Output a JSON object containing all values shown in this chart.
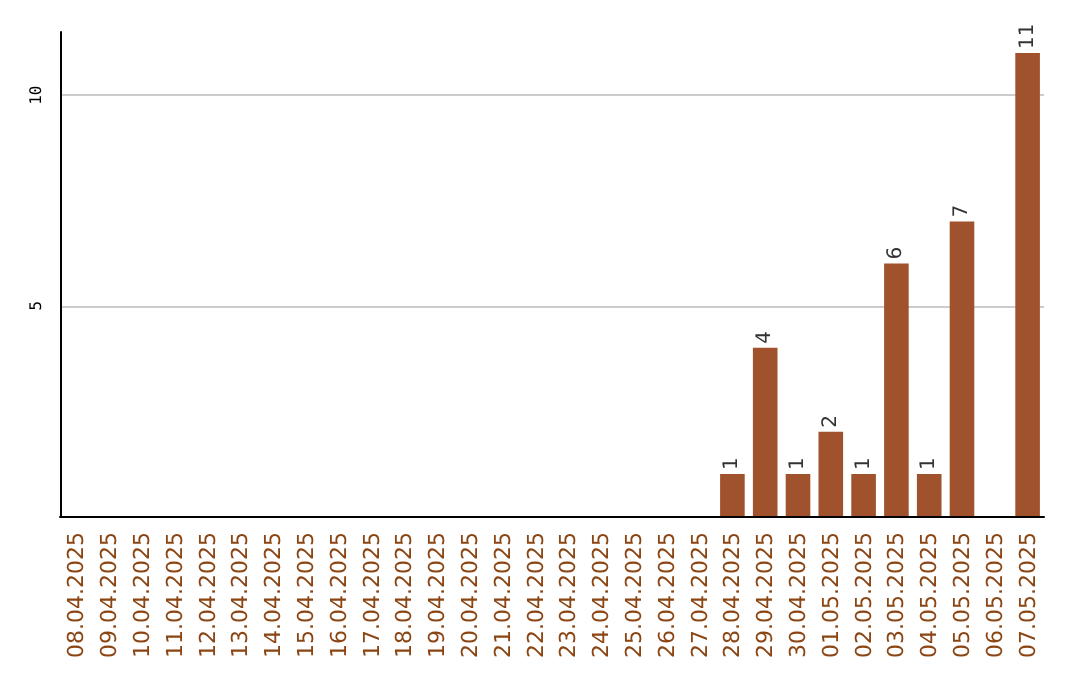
{
  "chart_data": {
    "type": "bar",
    "categories": [
      "08.04.2025",
      "09.04.2025",
      "10.04.2025",
      "11.04.2025",
      "12.04.2025",
      "13.04.2025",
      "14.04.2025",
      "15.04.2025",
      "16.04.2025",
      "17.04.2025",
      "18.04.2025",
      "19.04.2025",
      "20.04.2025",
      "21.04.2025",
      "22.04.2025",
      "23.04.2025",
      "24.04.2025",
      "25.04.2025",
      "26.04.2025",
      "27.04.2025",
      "28.04.2025",
      "29.04.2025",
      "30.04.2025",
      "01.05.2025",
      "02.05.2025",
      "03.05.2025",
      "04.05.2025",
      "05.05.2025",
      "06.05.2025",
      "07.05.2025"
    ],
    "values": [
      0,
      0,
      0,
      0,
      0,
      0,
      0,
      0,
      0,
      0,
      0,
      0,
      0,
      0,
      0,
      0,
      0,
      0,
      0,
      0,
      1,
      4,
      1,
      2,
      1,
      6,
      1,
      7,
      0,
      11
    ],
    "value_labels": [
      null,
      null,
      null,
      null,
      null,
      null,
      null,
      null,
      null,
      null,
      null,
      null,
      null,
      null,
      null,
      null,
      null,
      null,
      null,
      null,
      "1",
      "4",
      "1",
      "2",
      "1",
      "6",
      "1",
      "7",
      null,
      "11"
    ],
    "color": "#a0522d",
    "ylim": [
      0,
      11.5
    ],
    "yticks": [
      {
        "value": 0,
        "label": null
      },
      5,
      10
    ],
    "grid": "y"
  }
}
